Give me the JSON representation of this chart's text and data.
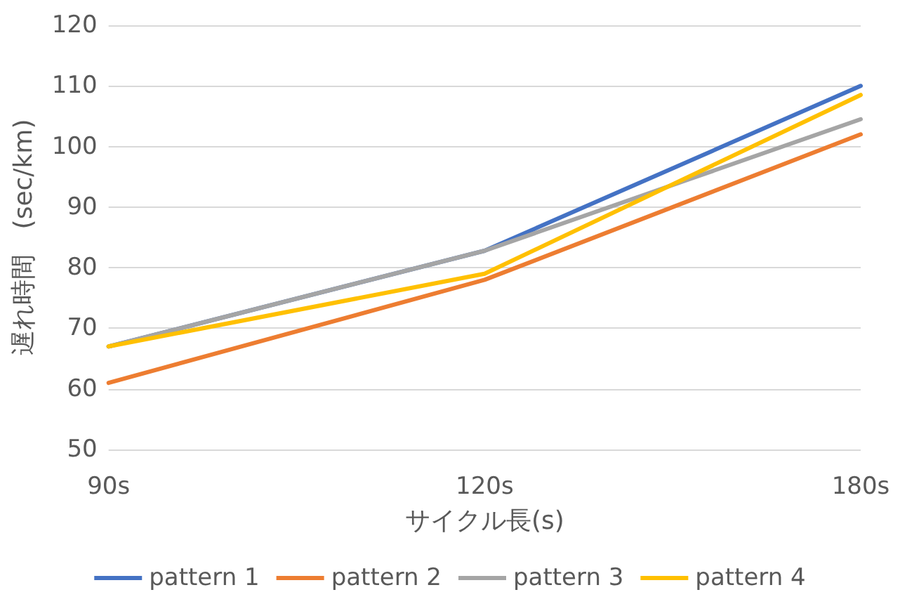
{
  "chart_data": {
    "type": "line",
    "xlabel": "サイクル長(s)",
    "ylabel": "遅れ時間　(sec/km)",
    "categories": [
      "90s",
      "120s",
      "180s"
    ],
    "series": [
      {
        "name": "pattern 1",
        "color": "#4472c4",
        "values": [
          67,
          82.8,
          110
        ]
      },
      {
        "name": "pattern 2",
        "color": "#ed7d31",
        "values": [
          61,
          78,
          102
        ]
      },
      {
        "name": "pattern 3",
        "color": "#a5a5a5",
        "values": [
          67,
          82.8,
          104.5
        ]
      },
      {
        "name": "pattern 4",
        "color": "#ffc000",
        "values": [
          67,
          79,
          108.5
        ]
      }
    ],
    "ylim": [
      50,
      120
    ],
    "yticks": [
      50,
      60,
      70,
      80,
      90,
      100,
      110,
      120
    ],
    "grid": "y",
    "legend": "bottom",
    "marker": "none",
    "line_style": "solid"
  }
}
